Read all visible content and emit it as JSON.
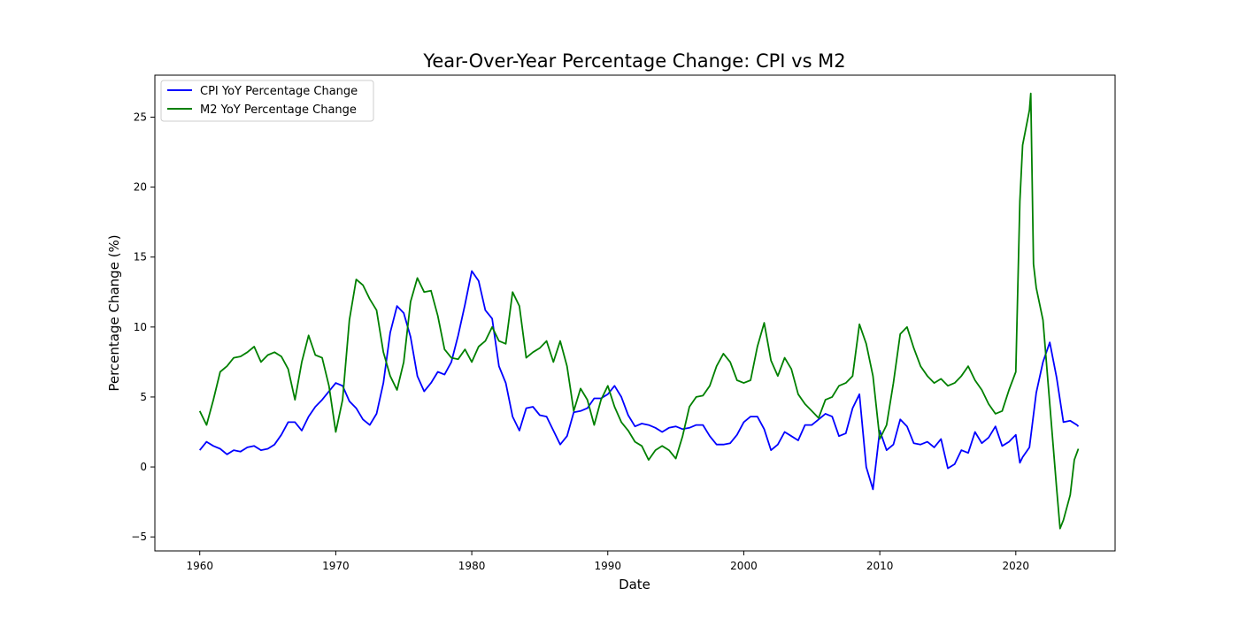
{
  "chart_data": {
    "type": "line",
    "title": "Year-Over-Year Percentage Change: CPI vs M2",
    "xlabel": "Date",
    "ylabel": "Percentage Change (%)",
    "xlim": [
      1956.7,
      2027.3
    ],
    "ylim": [
      -6.0,
      28.0
    ],
    "x_ticks": [
      1960,
      1970,
      1980,
      1990,
      2000,
      2010,
      2020
    ],
    "x_tick_labels": [
      "1960",
      "1970",
      "1980",
      "1990",
      "2000",
      "2010",
      "2020"
    ],
    "y_ticks": [
      -5,
      0,
      5,
      10,
      15,
      20,
      25
    ],
    "y_tick_labels": [
      "−5",
      "0",
      "5",
      "10",
      "15",
      "20",
      "25"
    ],
    "grid": false,
    "legend_position": "top-left",
    "series": [
      {
        "name": "CPI YoY Percentage Change",
        "color": "#0000ff",
        "points": [
          [
            1960.0,
            1.2
          ],
          [
            1960.5,
            1.8
          ],
          [
            1961.0,
            1.5
          ],
          [
            1961.5,
            1.3
          ],
          [
            1962.0,
            0.9
          ],
          [
            1962.5,
            1.2
          ],
          [
            1963.0,
            1.1
          ],
          [
            1963.5,
            1.4
          ],
          [
            1964.0,
            1.5
          ],
          [
            1964.5,
            1.2
          ],
          [
            1965.0,
            1.3
          ],
          [
            1965.5,
            1.6
          ],
          [
            1966.0,
            2.3
          ],
          [
            1966.5,
            3.2
          ],
          [
            1967.0,
            3.2
          ],
          [
            1967.5,
            2.6
          ],
          [
            1968.0,
            3.6
          ],
          [
            1968.5,
            4.3
          ],
          [
            1969.0,
            4.8
          ],
          [
            1969.5,
            5.4
          ],
          [
            1970.0,
            6.0
          ],
          [
            1970.5,
            5.8
          ],
          [
            1971.0,
            4.7
          ],
          [
            1971.5,
            4.2
          ],
          [
            1972.0,
            3.4
          ],
          [
            1972.5,
            3.0
          ],
          [
            1973.0,
            3.8
          ],
          [
            1973.5,
            6.0
          ],
          [
            1974.0,
            9.6
          ],
          [
            1974.5,
            11.5
          ],
          [
            1975.0,
            11.0
          ],
          [
            1975.5,
            9.3
          ],
          [
            1976.0,
            6.5
          ],
          [
            1976.5,
            5.4
          ],
          [
            1977.0,
            6.0
          ],
          [
            1977.5,
            6.8
          ],
          [
            1978.0,
            6.6
          ],
          [
            1978.5,
            7.5
          ],
          [
            1979.0,
            9.4
          ],
          [
            1979.5,
            11.6
          ],
          [
            1980.0,
            14.0
          ],
          [
            1980.5,
            13.3
          ],
          [
            1981.0,
            11.2
          ],
          [
            1981.5,
            10.6
          ],
          [
            1982.0,
            7.2
          ],
          [
            1982.5,
            6.0
          ],
          [
            1983.0,
            3.6
          ],
          [
            1983.5,
            2.6
          ],
          [
            1984.0,
            4.2
          ],
          [
            1984.5,
            4.3
          ],
          [
            1985.0,
            3.7
          ],
          [
            1985.5,
            3.6
          ],
          [
            1986.0,
            2.6
          ],
          [
            1986.5,
            1.6
          ],
          [
            1987.0,
            2.2
          ],
          [
            1987.5,
            3.9
          ],
          [
            1988.0,
            4.0
          ],
          [
            1988.5,
            4.2
          ],
          [
            1989.0,
            4.9
          ],
          [
            1989.5,
            4.9
          ],
          [
            1990.0,
            5.2
          ],
          [
            1990.5,
            5.8
          ],
          [
            1991.0,
            5.0
          ],
          [
            1991.5,
            3.7
          ],
          [
            1992.0,
            2.9
          ],
          [
            1992.5,
            3.1
          ],
          [
            1993.0,
            3.0
          ],
          [
            1993.5,
            2.8
          ],
          [
            1994.0,
            2.5
          ],
          [
            1994.5,
            2.8
          ],
          [
            1995.0,
            2.9
          ],
          [
            1995.5,
            2.7
          ],
          [
            1996.0,
            2.8
          ],
          [
            1996.5,
            3.0
          ],
          [
            1997.0,
            3.0
          ],
          [
            1997.5,
            2.2
          ],
          [
            1998.0,
            1.6
          ],
          [
            1998.5,
            1.6
          ],
          [
            1999.0,
            1.7
          ],
          [
            1999.5,
            2.3
          ],
          [
            2000.0,
            3.2
          ],
          [
            2000.5,
            3.6
          ],
          [
            2001.0,
            3.6
          ],
          [
            2001.5,
            2.7
          ],
          [
            2002.0,
            1.2
          ],
          [
            2002.5,
            1.6
          ],
          [
            2003.0,
            2.5
          ],
          [
            2003.5,
            2.2
          ],
          [
            2004.0,
            1.9
          ],
          [
            2004.5,
            3.0
          ],
          [
            2005.0,
            3.0
          ],
          [
            2005.5,
            3.4
          ],
          [
            2006.0,
            3.8
          ],
          [
            2006.5,
            3.6
          ],
          [
            2007.0,
            2.2
          ],
          [
            2007.5,
            2.4
          ],
          [
            2008.0,
            4.2
          ],
          [
            2008.5,
            5.2
          ],
          [
            2009.0,
            0.0
          ],
          [
            2009.5,
            -1.6
          ],
          [
            2010.0,
            2.6
          ],
          [
            2010.5,
            1.2
          ],
          [
            2011.0,
            1.6
          ],
          [
            2011.5,
            3.4
          ],
          [
            2012.0,
            2.9
          ],
          [
            2012.5,
            1.7
          ],
          [
            2013.0,
            1.6
          ],
          [
            2013.5,
            1.8
          ],
          [
            2014.0,
            1.4
          ],
          [
            2014.5,
            2.0
          ],
          [
            2015.0,
            -0.1
          ],
          [
            2015.5,
            0.2
          ],
          [
            2016.0,
            1.2
          ],
          [
            2016.5,
            1.0
          ],
          [
            2017.0,
            2.5
          ],
          [
            2017.5,
            1.7
          ],
          [
            2018.0,
            2.1
          ],
          [
            2018.5,
            2.9
          ],
          [
            2019.0,
            1.5
          ],
          [
            2019.5,
            1.8
          ],
          [
            2020.0,
            2.3
          ],
          [
            2020.3,
            0.3
          ],
          [
            2020.5,
            0.7
          ],
          [
            2021.0,
            1.4
          ],
          [
            2021.5,
            5.3
          ],
          [
            2022.0,
            7.5
          ],
          [
            2022.5,
            8.9
          ],
          [
            2023.0,
            6.4
          ],
          [
            2023.5,
            3.2
          ],
          [
            2024.0,
            3.3
          ],
          [
            2024.5,
            3.0
          ],
          [
            2024.6,
            2.9
          ]
        ]
      },
      {
        "name": "M2 YoY Percentage Change",
        "color": "#008000",
        "points": [
          [
            1960.0,
            4.0
          ],
          [
            1960.5,
            3.0
          ],
          [
            1961.0,
            4.8
          ],
          [
            1961.5,
            6.8
          ],
          [
            1962.0,
            7.2
          ],
          [
            1962.5,
            7.8
          ],
          [
            1963.0,
            7.9
          ],
          [
            1963.5,
            8.2
          ],
          [
            1964.0,
            8.6
          ],
          [
            1964.5,
            7.5
          ],
          [
            1965.0,
            8.0
          ],
          [
            1965.5,
            8.2
          ],
          [
            1966.0,
            7.9
          ],
          [
            1966.5,
            7.0
          ],
          [
            1967.0,
            4.8
          ],
          [
            1967.5,
            7.5
          ],
          [
            1968.0,
            9.4
          ],
          [
            1968.5,
            8.0
          ],
          [
            1969.0,
            7.8
          ],
          [
            1969.5,
            5.8
          ],
          [
            1970.0,
            2.5
          ],
          [
            1970.5,
            4.8
          ],
          [
            1971.0,
            10.5
          ],
          [
            1971.5,
            13.4
          ],
          [
            1972.0,
            13.0
          ],
          [
            1972.5,
            12.0
          ],
          [
            1973.0,
            11.2
          ],
          [
            1973.5,
            8.2
          ],
          [
            1974.0,
            6.5
          ],
          [
            1974.5,
            5.5
          ],
          [
            1975.0,
            7.5
          ],
          [
            1975.5,
            11.8
          ],
          [
            1976.0,
            13.5
          ],
          [
            1976.5,
            12.5
          ],
          [
            1977.0,
            12.6
          ],
          [
            1977.5,
            10.8
          ],
          [
            1978.0,
            8.4
          ],
          [
            1978.5,
            7.8
          ],
          [
            1979.0,
            7.7
          ],
          [
            1979.5,
            8.4
          ],
          [
            1980.0,
            7.5
          ],
          [
            1980.5,
            8.6
          ],
          [
            1981.0,
            9.0
          ],
          [
            1981.5,
            10.0
          ],
          [
            1982.0,
            9.0
          ],
          [
            1982.5,
            8.8
          ],
          [
            1983.0,
            12.5
          ],
          [
            1983.5,
            11.5
          ],
          [
            1984.0,
            7.8
          ],
          [
            1984.5,
            8.2
          ],
          [
            1985.0,
            8.5
          ],
          [
            1985.5,
            9.0
          ],
          [
            1986.0,
            7.5
          ],
          [
            1986.5,
            9.0
          ],
          [
            1987.0,
            7.2
          ],
          [
            1987.5,
            4.0
          ],
          [
            1988.0,
            5.6
          ],
          [
            1988.5,
            4.8
          ],
          [
            1989.0,
            3.0
          ],
          [
            1989.5,
            4.8
          ],
          [
            1990.0,
            5.8
          ],
          [
            1990.5,
            4.3
          ],
          [
            1991.0,
            3.2
          ],
          [
            1991.5,
            2.6
          ],
          [
            1992.0,
            1.8
          ],
          [
            1992.5,
            1.5
          ],
          [
            1993.0,
            0.5
          ],
          [
            1993.5,
            1.2
          ],
          [
            1994.0,
            1.5
          ],
          [
            1994.5,
            1.2
          ],
          [
            1995.0,
            0.6
          ],
          [
            1995.5,
            2.2
          ],
          [
            1996.0,
            4.3
          ],
          [
            1996.5,
            5.0
          ],
          [
            1997.0,
            5.1
          ],
          [
            1997.5,
            5.8
          ],
          [
            1998.0,
            7.2
          ],
          [
            1998.5,
            8.1
          ],
          [
            1999.0,
            7.5
          ],
          [
            1999.5,
            6.2
          ],
          [
            2000.0,
            6.0
          ],
          [
            2000.5,
            6.2
          ],
          [
            2001.0,
            8.6
          ],
          [
            2001.5,
            10.3
          ],
          [
            2002.0,
            7.6
          ],
          [
            2002.5,
            6.5
          ],
          [
            2003.0,
            7.8
          ],
          [
            2003.5,
            7.0
          ],
          [
            2004.0,
            5.2
          ],
          [
            2004.5,
            4.5
          ],
          [
            2005.0,
            4.0
          ],
          [
            2005.5,
            3.5
          ],
          [
            2006.0,
            4.8
          ],
          [
            2006.5,
            5.0
          ],
          [
            2007.0,
            5.8
          ],
          [
            2007.5,
            6.0
          ],
          [
            2008.0,
            6.5
          ],
          [
            2008.5,
            10.2
          ],
          [
            2009.0,
            8.8
          ],
          [
            2009.5,
            6.5
          ],
          [
            2010.0,
            2.0
          ],
          [
            2010.5,
            3.0
          ],
          [
            2011.0,
            6.0
          ],
          [
            2011.5,
            9.5
          ],
          [
            2012.0,
            10.0
          ],
          [
            2012.5,
            8.5
          ],
          [
            2013.0,
            7.2
          ],
          [
            2013.5,
            6.5
          ],
          [
            2014.0,
            6.0
          ],
          [
            2014.5,
            6.3
          ],
          [
            2015.0,
            5.8
          ],
          [
            2015.5,
            6.0
          ],
          [
            2016.0,
            6.5
          ],
          [
            2016.5,
            7.2
          ],
          [
            2017.0,
            6.2
          ],
          [
            2017.5,
            5.5
          ],
          [
            2018.0,
            4.5
          ],
          [
            2018.5,
            3.8
          ],
          [
            2019.0,
            4.0
          ],
          [
            2019.5,
            5.5
          ],
          [
            2020.0,
            6.8
          ],
          [
            2020.3,
            19.0
          ],
          [
            2020.5,
            23.0
          ],
          [
            2021.0,
            25.5
          ],
          [
            2021.1,
            26.7
          ],
          [
            2021.3,
            14.5
          ],
          [
            2021.5,
            12.8
          ],
          [
            2022.0,
            10.5
          ],
          [
            2022.5,
            4.5
          ],
          [
            2023.0,
            -1.5
          ],
          [
            2023.25,
            -4.4
          ],
          [
            2023.5,
            -3.8
          ],
          [
            2024.0,
            -2.0
          ],
          [
            2024.3,
            0.5
          ],
          [
            2024.6,
            1.3
          ]
        ]
      }
    ]
  }
}
